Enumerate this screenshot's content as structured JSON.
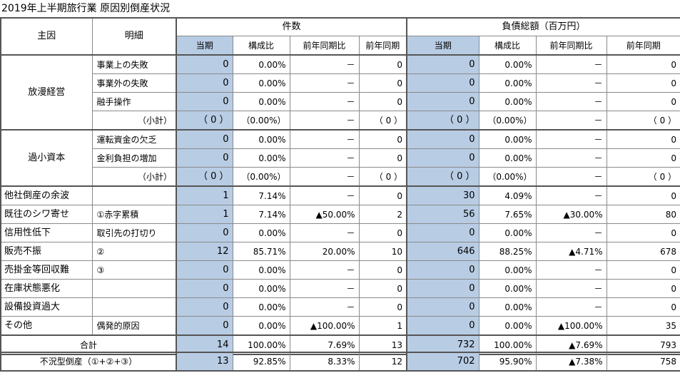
{
  "title": "2019年上半期旅行業 原因別倒産状況",
  "header": {
    "cause": "主因",
    "detail": "明細",
    "count_group": "件数",
    "debt_group": "負債総額（百万円）",
    "cols": [
      "当期",
      "構成比",
      "前年同期比",
      "前年同期",
      "当期",
      "構成比",
      "前年同期比",
      "前年同期"
    ]
  },
  "groups": [
    {
      "cause": "放漫経営",
      "rows": [
        {
          "detail": "事業上の失敗",
          "values": [
            "0",
            "0.00%",
            "－",
            "0",
            "0",
            "0.00%",
            "－",
            "0"
          ]
        },
        {
          "detail": "事業外の失敗",
          "values": [
            "0",
            "0.00%",
            "－",
            "0",
            "0",
            "0.00%",
            "－",
            "0"
          ]
        },
        {
          "detail": "融手操作",
          "values": [
            "0",
            "0.00%",
            "－",
            "0",
            "0",
            "0.00%",
            "－",
            "0"
          ]
        }
      ],
      "subtotal": {
        "label": "（小計）",
        "values": [
          "（ 0 ）",
          "（0.00%）",
          "－",
          "（ 0 ）",
          "（ 0 ）",
          "（0.00%）",
          "－",
          "（ 0 ）"
        ]
      }
    },
    {
      "cause": "過小資本",
      "rows": [
        {
          "detail": "運転資金の欠乏",
          "values": [
            "0",
            "0.00%",
            "－",
            "0",
            "0",
            "0.00%",
            "－",
            "0"
          ]
        },
        {
          "detail": "金利負担の増加",
          "values": [
            "0",
            "0.00%",
            "－",
            "0",
            "0",
            "0.00%",
            "－",
            "0"
          ]
        }
      ],
      "subtotal": {
        "label": "（小計）",
        "values": [
          "（ 0 ）",
          "（0.00%）",
          "－",
          "（ 0 ）",
          "（ 0 ）",
          "（0.00%）",
          "－",
          "（ 0 ）"
        ]
      }
    }
  ],
  "singles": [
    {
      "cause": "他社倒産の余波",
      "detail": "",
      "values": [
        "1",
        "7.14%",
        "－",
        "0",
        "30",
        "4.09%",
        "－",
        "0"
      ]
    },
    {
      "cause": "既往のシワ寄せ",
      "detail": "①赤字累積",
      "values": [
        "1",
        "7.14%",
        "▲50.00%",
        "2",
        "56",
        "7.65%",
        "▲30.00%",
        "80"
      ]
    },
    {
      "cause": "信用性低下",
      "detail": "取引先の打切り",
      "values": [
        "0",
        "0.00%",
        "－",
        "0",
        "0",
        "0.00%",
        "－",
        "0"
      ]
    },
    {
      "cause": "販売不振",
      "detail": "②",
      "values": [
        "12",
        "85.71%",
        "20.00%",
        "10",
        "646",
        "88.25%",
        "▲4.71%",
        "678"
      ]
    },
    {
      "cause": "売掛金等回収難",
      "detail": "③",
      "values": [
        "0",
        "0.00%",
        "－",
        "0",
        "0",
        "0.00%",
        "－",
        "0"
      ]
    },
    {
      "cause": "在庫状態悪化",
      "detail": "",
      "values": [
        "0",
        "0.00%",
        "－",
        "0",
        "0",
        "0.00%",
        "－",
        "0"
      ]
    },
    {
      "cause": "設備投資過大",
      "detail": "",
      "values": [
        "0",
        "0.00%",
        "－",
        "0",
        "0",
        "0.00%",
        "－",
        "0"
      ]
    },
    {
      "cause": "その他",
      "detail": "偶発的原因",
      "values": [
        "0",
        "0.00%",
        "▲100.00%",
        "1",
        "0",
        "0.00%",
        "▲100.00%",
        "35"
      ]
    }
  ],
  "total": {
    "label": "合計",
    "values": [
      "14",
      "100.00%",
      "7.69%",
      "13",
      "732",
      "100.00%",
      "▲7.69%",
      "793"
    ]
  },
  "summary": {
    "label": "不況型倒産（①+②+③）",
    "values": [
      "13",
      "92.85%",
      "8.33%",
      "12",
      "702",
      "95.90%",
      "▲7.38%",
      "758"
    ]
  }
}
